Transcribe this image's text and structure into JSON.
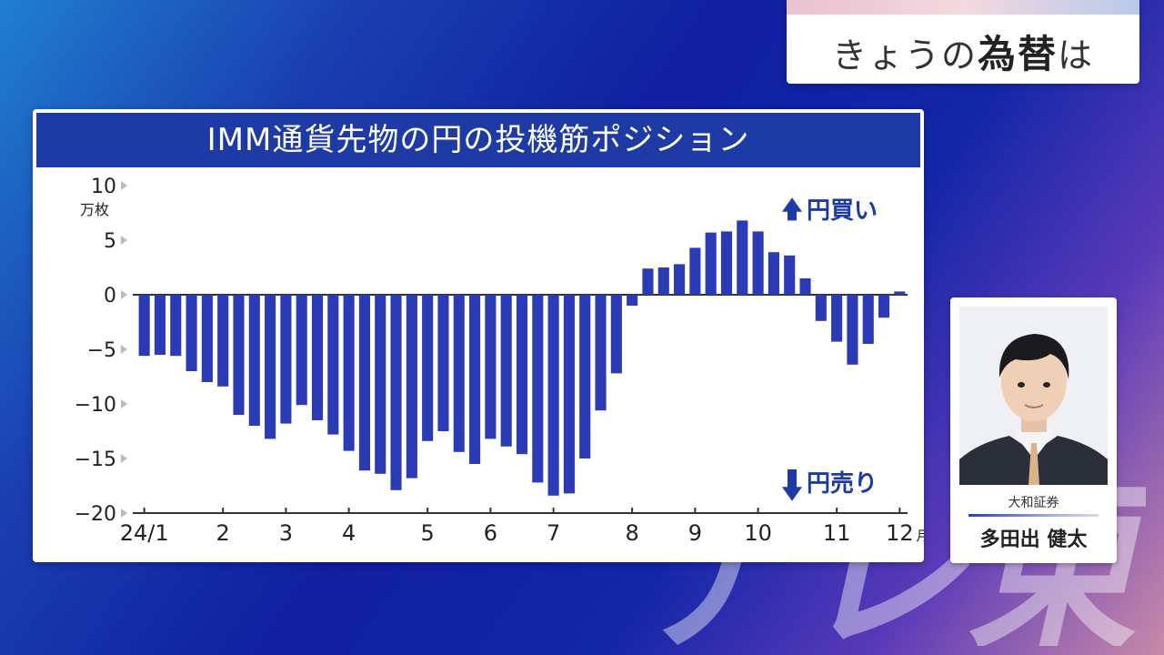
{
  "headline": {
    "prefix": "きょうの",
    "emphasis": "為替",
    "suffix": "は"
  },
  "watermark": {
    "text": "テレ東"
  },
  "profile": {
    "company": "大和証券",
    "name": "多田出 健太"
  },
  "chart_data": {
    "type": "bar",
    "title": "IMM通貨先物の円の投機筋ポジション",
    "unit_label": "万枚",
    "ylim": [
      -20,
      10
    ],
    "yticks": [
      10,
      5,
      0,
      -5,
      -10,
      -15,
      -20
    ],
    "ytick_labels": [
      "10",
      "5",
      "0",
      "−5",
      "−10",
      "−15",
      "−20"
    ],
    "x_labels": [
      {
        "text": "24/1",
        "index": 0
      },
      {
        "text": "2",
        "index": 5
      },
      {
        "text": "3",
        "index": 9
      },
      {
        "text": "4",
        "index": 13
      },
      {
        "text": "5",
        "index": 18
      },
      {
        "text": "6",
        "index": 22
      },
      {
        "text": "7",
        "index": 26
      },
      {
        "text": "8",
        "index": 31
      },
      {
        "text": "9",
        "index": 35
      },
      {
        "text": "10",
        "index": 39
      },
      {
        "text": "11",
        "index": 44
      },
      {
        "text": "12",
        "index": 48
      }
    ],
    "x_unit": "月",
    "annotations": {
      "up": "円買い",
      "down": "円売り"
    },
    "values": [
      -5.6,
      -5.5,
      -5.6,
      -7.0,
      -8.0,
      -8.4,
      -11.0,
      -12.0,
      -13.2,
      -11.8,
      -10.1,
      -11.5,
      -12.8,
      -14.3,
      -16.1,
      -16.4,
      -17.9,
      -16.8,
      -13.4,
      -12.5,
      -14.4,
      -15.5,
      -13.2,
      -13.9,
      -14.6,
      -17.2,
      -18.4,
      -18.2,
      -15.0,
      -10.6,
      -7.2,
      -1.0,
      2.4,
      2.5,
      2.8,
      4.3,
      5.7,
      5.8,
      6.8,
      5.8,
      3.9,
      3.6,
      1.5,
      -2.4,
      -4.3,
      -6.4,
      -4.5,
      -2.1,
      0.3
    ],
    "bar_color": "#2a3bb5"
  }
}
